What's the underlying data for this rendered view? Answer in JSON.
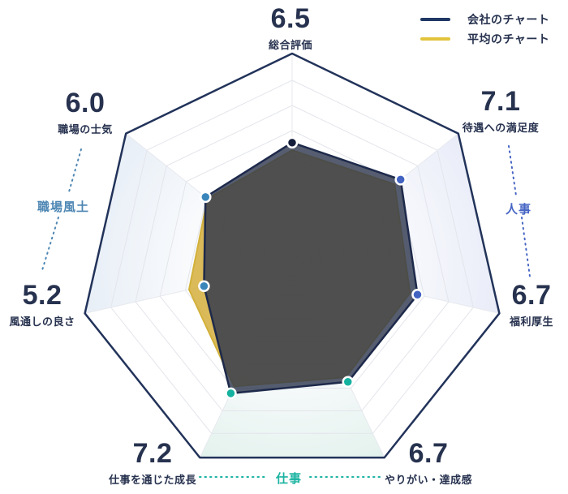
{
  "legend": {
    "items": [
      {
        "label": "会社のチャート",
        "color": "#1f3864"
      },
      {
        "label": "平均のチャート",
        "color": "#e2c33c"
      }
    ]
  },
  "categories": [
    {
      "label": "職場風土",
      "color": "#4d86b3",
      "axes": [
        5,
        6
      ]
    },
    {
      "label": "人事",
      "color": "#4665c4",
      "axes": [
        1,
        2
      ]
    },
    {
      "label": "仕事",
      "color": "#1cb3a2",
      "axes": [
        3,
        4
      ]
    }
  ],
  "chart_data": {
    "type": "radar",
    "title": "",
    "grid": {
      "shape": "heptagon",
      "rings": 9,
      "spokes": true
    },
    "legend_position": "top-right",
    "scale": {
      "center_value": 1.65,
      "max": 10
    },
    "axes": [
      {
        "label": "総合評価",
        "value": 6.5,
        "display": "6.5",
        "dot_color": "#141d3a"
      },
      {
        "label": "待遇への満足度",
        "value": 7.1,
        "display": "7.1",
        "dot_color": "#4363c3"
      },
      {
        "label": "福利厚生",
        "value": 6.7,
        "display": "6.7",
        "dot_color": "#4363c3"
      },
      {
        "label": "やりがい・達成感",
        "value": 6.7,
        "display": "6.7",
        "dot_color": "#15b2a0"
      },
      {
        "label": "仕事を通じた成長",
        "value": 7.2,
        "display": "7.2",
        "dot_color": "#15b2a0"
      },
      {
        "label": "風通しの良さ",
        "value": 5.2,
        "display": "5.2",
        "dot_color": "#3a86ba"
      },
      {
        "label": "職場の士気",
        "value": 6.0,
        "display": "6.0",
        "dot_color": "#3a86ba"
      }
    ],
    "series": [
      {
        "name": "会社のチャート",
        "color": "#1f3864",
        "values": [
          6.5,
          7.1,
          6.7,
          6.7,
          7.2,
          5.2,
          6.0
        ]
      },
      {
        "name": "平均のチャート",
        "color": "#e2c33c",
        "values_estimated": true,
        "values": [
          6.2,
          6.8,
          6.4,
          6.5,
          6.9,
          5.8,
          5.9
        ]
      }
    ],
    "sector_tints": {
      "職場風土": "#e7eef6",
      "人事": "#e9ecf8",
      "仕事": "#e3f2ed"
    }
  }
}
